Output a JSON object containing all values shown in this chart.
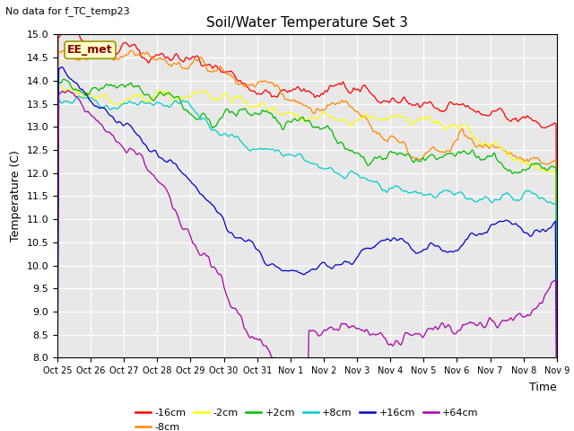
{
  "title": "Soil/Water Temperature Set 3",
  "no_data_label": "No data for f_TC_temp23",
  "xlabel": "Time",
  "ylabel": "Temperature (C)",
  "ylim": [
    8.0,
    15.0
  ],
  "yticks": [
    8.0,
    8.5,
    9.0,
    9.5,
    10.0,
    10.5,
    11.0,
    11.5,
    12.0,
    12.5,
    13.0,
    13.5,
    14.0,
    14.5,
    15.0
  ],
  "plot_bg": "#e8e8e8",
  "xtick_labels": [
    "Oct 25",
    "Oct 26",
    "Oct 27",
    "Oct 28",
    "Oct 29",
    "Oct 30",
    "Oct 31",
    "Nov 1",
    "Nov 2",
    "Nov 3",
    "Nov 4",
    "Nov 5",
    "Nov 6",
    "Nov 7",
    "Nov 8",
    "Nov 9"
  ],
  "series": [
    {
      "label": "-16cm",
      "color": "#ff0000"
    },
    {
      "label": "-8cm",
      "color": "#ff8800"
    },
    {
      "label": "-2cm",
      "color": "#ffff00"
    },
    {
      "label": "+2cm",
      "color": "#00bb00"
    },
    {
      "label": "+8cm",
      "color": "#00cccc"
    },
    {
      "label": "+16cm",
      "color": "#0000cc"
    },
    {
      "label": "+64cm",
      "color": "#aa00aa"
    }
  ],
  "ee_met_label": "EE_met"
}
